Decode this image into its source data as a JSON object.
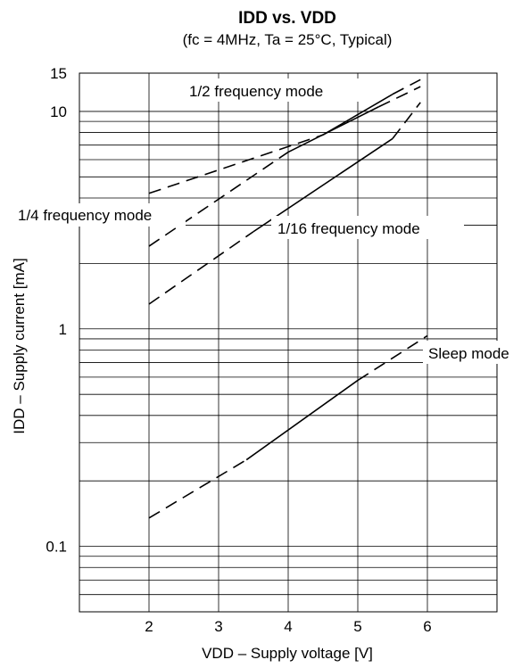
{
  "chart_data": {
    "type": "line",
    "title": "IDD vs. VDD",
    "subtitle": "(fc = 4MHz, Ta = 25°C, Typical)",
    "xlabel": "VDD – Supply voltage [V]",
    "ylabel": "IDD – Supply current [mA]",
    "xlim": [
      1,
      7
    ],
    "ylim": [
      0.05,
      15
    ],
    "yscale": "log",
    "grid": true,
    "x_ticks": [
      2,
      3,
      4,
      5,
      6
    ],
    "x_tick_labels": [
      "2",
      "3",
      "4",
      "5",
      "6"
    ],
    "y_ticks": [
      0.1,
      1,
      10,
      15
    ],
    "y_tick_labels": [
      "0.1",
      "1",
      "10",
      "15"
    ],
    "legend": "inline labels next to curves",
    "series": [
      {
        "name": "1/2 frequency mode",
        "segments": [
          {
            "x": [
              2,
              4.5
            ],
            "y": [
              4.2,
              7.8
            ],
            "style": "dashed"
          },
          {
            "x": [
              4.5,
              5.5
            ],
            "y": [
              7.8,
              12
            ],
            "style": "solid"
          },
          {
            "x": [
              5.5,
              5.9
            ],
            "y": [
              12,
              14.0
            ],
            "style": "dashed"
          }
        ]
      },
      {
        "name": "1/4 frequency mode",
        "segments": [
          {
            "x": [
              2,
              4.0
            ],
            "y": [
              2.4,
              6.5
            ],
            "style": "dashed"
          },
          {
            "x": [
              4.0,
              5.3
            ],
            "y": [
              6.5,
              10.5
            ],
            "style": "solid"
          },
          {
            "x": [
              5.3,
              5.9
            ],
            "y": [
              10.5,
              13.0
            ],
            "style": "dashed"
          }
        ]
      },
      {
        "name": "1/16 frequency mode",
        "segments": [
          {
            "x": [
              2,
              3.5
            ],
            "y": [
              1.3,
              2.8
            ],
            "style": "dashed"
          },
          {
            "x": [
              3.5,
              5.5
            ],
            "y": [
              2.8,
              7.5
            ],
            "style": "solid"
          },
          {
            "x": [
              5.5,
              5.9
            ],
            "y": [
              7.5,
              11.0
            ],
            "style": "dashed"
          }
        ]
      },
      {
        "name": "Sleep mode",
        "segments": [
          {
            "x": [
              2,
              3.4
            ],
            "y": [
              0.135,
              0.25
            ],
            "style": "dashed"
          },
          {
            "x": [
              3.4,
              5.0
            ],
            "y": [
              0.25,
              0.58
            ],
            "style": "solid"
          },
          {
            "x": [
              5.0,
              6.0
            ],
            "y": [
              0.58,
              0.93
            ],
            "style": "dashed"
          }
        ]
      }
    ]
  }
}
